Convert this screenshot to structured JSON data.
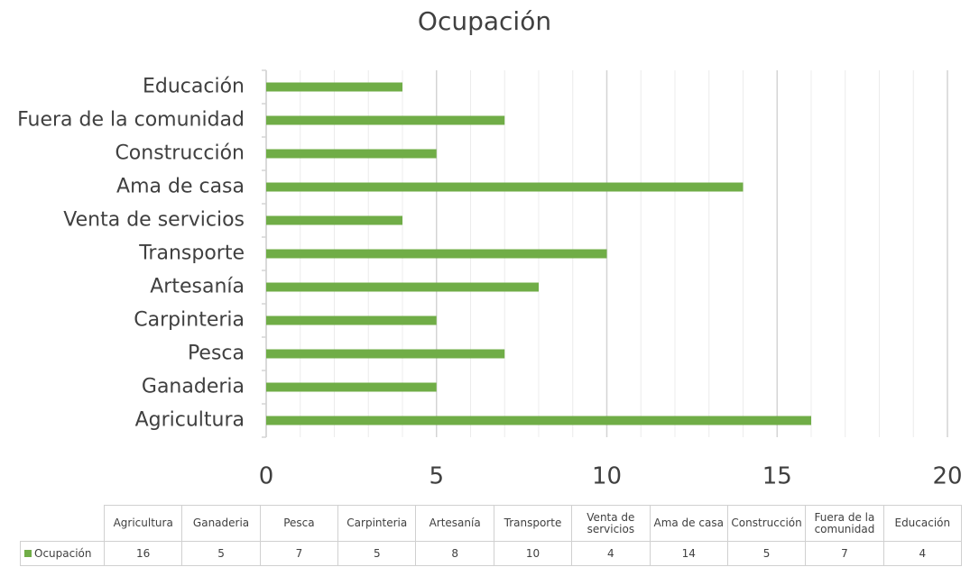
{
  "chart_data": {
    "type": "bar",
    "orientation": "horizontal",
    "title": "Ocupación",
    "categories": [
      "Agricultura",
      "Ganaderia",
      "Pesca",
      "Carpinteria",
      "Artesanía",
      "Transporte",
      "Venta de servicios",
      "Ama de casa",
      "Construcción",
      "Fuera de la comunidad",
      "Educación"
    ],
    "series": [
      {
        "name": "Ocupación",
        "color": "#70ad47",
        "values": [
          16,
          5,
          7,
          5,
          8,
          10,
          4,
          14,
          5,
          7,
          4
        ]
      }
    ],
    "xlim": [
      0,
      20
    ],
    "xticks": [
      0,
      5,
      10,
      15,
      20
    ],
    "grid": true,
    "data_table": true
  }
}
